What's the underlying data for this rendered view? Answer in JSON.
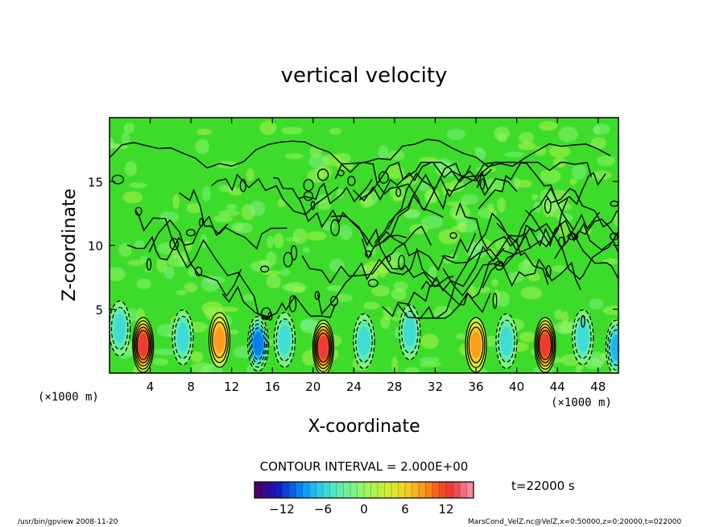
{
  "chart_data": {
    "type": "heatmap",
    "title": "vertical velocity",
    "xlabel": "X-coordinate",
    "ylabel": "Z-coordinate",
    "x_unit_left": "(×1000 m)",
    "x_unit_right": "(×1000 m)",
    "xlim": [
      0,
      50
    ],
    "ylim": [
      0,
      20
    ],
    "x_ticks": [
      4,
      8,
      12,
      16,
      20,
      24,
      28,
      32,
      36,
      40,
      44,
      48
    ],
    "x_tick_labels": [
      "4",
      "8",
      "12",
      "16",
      "20",
      "24",
      "28",
      "32",
      "36",
      "40",
      "44",
      "48"
    ],
    "y_ticks": [
      5,
      10,
      15
    ],
    "y_tick_labels": [
      "5",
      "10",
      "15"
    ],
    "contour_interval_text": "CONTOUR INTERVAL = 2.000E+00",
    "time_text": "t=22000 s",
    "colorbar": {
      "range": [
        -16,
        16
      ],
      "ticks": [
        -12,
        -6,
        0,
        6,
        12
      ],
      "tick_labels": [
        "−12",
        "−6",
        "0",
        "6",
        "12"
      ],
      "colors": [
        "#4b006e",
        "#3a0a8c",
        "#2410a8",
        "#0f1fc4",
        "#0a3fd8",
        "#0a5ee4",
        "#0a7ef0",
        "#129cf4",
        "#1fb6f0",
        "#2fcbe6",
        "#3fdcd6",
        "#4fe6c0",
        "#5fecaa",
        "#6ff096",
        "#7ff282",
        "#8ff46e",
        "#9ff45c",
        "#aff24c",
        "#bff040",
        "#cfec36",
        "#dfe42e",
        "#ecd828",
        "#f4c824",
        "#f8b420",
        "#fa9c1e",
        "#fa801c",
        "#f8641c",
        "#f44c22",
        "#f03a36",
        "#ee4a56",
        "#f06a80",
        "#f48aa0"
      ]
    },
    "updraft_cells": [
      {
        "x": 3.3,
        "z": 2.2,
        "w": 12
      },
      {
        "x": 10.8,
        "z": 2.6,
        "w": 7
      },
      {
        "x": 21.0,
        "z": 2.0,
        "w": 12
      },
      {
        "x": 36.0,
        "z": 2.2,
        "w": 7
      },
      {
        "x": 42.8,
        "z": 2.2,
        "w": 11
      }
    ],
    "downdraft_cells": [
      {
        "x": 1.0,
        "z": 3.5,
        "w": -5
      },
      {
        "x": 7.2,
        "z": 2.8,
        "w": -5
      },
      {
        "x": 14.6,
        "z": 2.3,
        "w": -10
      },
      {
        "x": 17.2,
        "z": 2.6,
        "w": -5
      },
      {
        "x": 25.0,
        "z": 2.5,
        "w": -5
      },
      {
        "x": 29.5,
        "z": 3.2,
        "w": -5
      },
      {
        "x": 39.0,
        "z": 2.5,
        "w": -6
      },
      {
        "x": 46.5,
        "z": 2.8,
        "w": -5
      },
      {
        "x": 49.8,
        "z": 2.0,
        "w": -8
      }
    ]
  },
  "footer": {
    "left": "/usr/bin/gpview  2008-11-20",
    "right": "MarsCond_VelZ.nc@VelZ,x=0:50000,z=0:20000,t=022000"
  },
  "colors": {
    "background_field": "#3ddc2a",
    "frame": "#000000"
  }
}
